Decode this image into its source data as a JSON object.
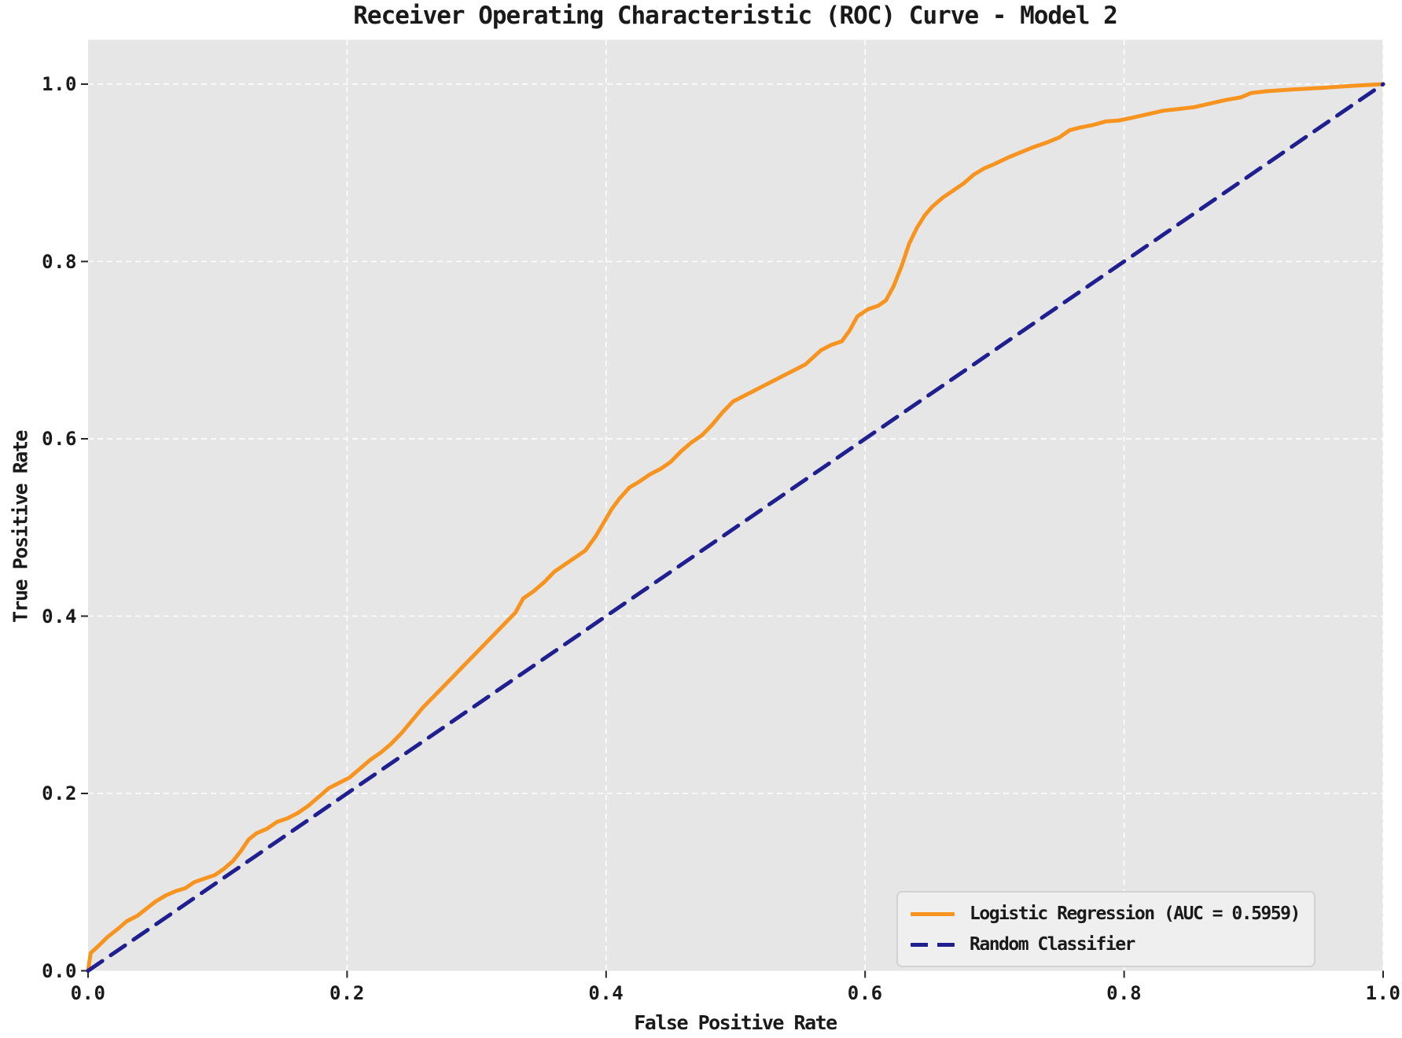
{
  "chart": {
    "title": "Receiver Operating Characteristic (ROC) Curve - Model 2",
    "xlabel": "False Positive Rate",
    "ylabel": "True Positive Rate"
  },
  "legend": {
    "position": "lower right",
    "items": [
      {
        "label": "Logistic Regression (AUC = 0.5959)",
        "style": "solid",
        "color": "#f79420"
      },
      {
        "label": "Random Classifier",
        "style": "dashed",
        "color": "#1f1f8f"
      }
    ]
  },
  "colors": {
    "figure_background": "#ffffff",
    "plot_background": "#e6e6e6",
    "gridline": "#ffffff",
    "roc_curve": "#f79420",
    "random_classifier": "#1f1f8f",
    "text": "#1a1a1a",
    "tick_mark": "#262626"
  },
  "chart_data": {
    "type": "line",
    "title": "Receiver Operating Characteristic (ROC) Curve - Model 2",
    "xlabel": "False Positive Rate",
    "ylabel": "True Positive Rate",
    "xlim": [
      0.0,
      1.0
    ],
    "ylim": [
      0.0,
      1.05
    ],
    "x_ticks": [
      "0.0",
      "0.2",
      "0.4",
      "0.6",
      "0.8",
      "1.0"
    ],
    "y_ticks": [
      "0.0",
      "0.2",
      "0.4",
      "0.6",
      "0.8",
      "1.0"
    ],
    "grid": {
      "visible": true,
      "line_style": "dashed",
      "color": "#ffffff"
    },
    "legend_position": "lower right",
    "auc": 0.5959,
    "series": [
      {
        "name": "Logistic Regression (AUC = 0.5959)",
        "color": "#f79420",
        "line_style": "solid",
        "line_width": 5,
        "points": [
          [
            0.0,
            0.0
          ],
          [
            0.002,
            0.02
          ],
          [
            0.008,
            0.028
          ],
          [
            0.015,
            0.038
          ],
          [
            0.022,
            0.046
          ],
          [
            0.03,
            0.056
          ],
          [
            0.038,
            0.062
          ],
          [
            0.045,
            0.07
          ],
          [
            0.052,
            0.078
          ],
          [
            0.06,
            0.085
          ],
          [
            0.068,
            0.09
          ],
          [
            0.075,
            0.093
          ],
          [
            0.082,
            0.1
          ],
          [
            0.09,
            0.104
          ],
          [
            0.098,
            0.108
          ],
          [
            0.105,
            0.115
          ],
          [
            0.112,
            0.124
          ],
          [
            0.118,
            0.135
          ],
          [
            0.124,
            0.148
          ],
          [
            0.13,
            0.155
          ],
          [
            0.138,
            0.16
          ],
          [
            0.146,
            0.168
          ],
          [
            0.154,
            0.172
          ],
          [
            0.162,
            0.178
          ],
          [
            0.17,
            0.186
          ],
          [
            0.178,
            0.196
          ],
          [
            0.186,
            0.206
          ],
          [
            0.194,
            0.212
          ],
          [
            0.202,
            0.218
          ],
          [
            0.21,
            0.228
          ],
          [
            0.218,
            0.238
          ],
          [
            0.226,
            0.246
          ],
          [
            0.234,
            0.256
          ],
          [
            0.242,
            0.268
          ],
          [
            0.25,
            0.282
          ],
          [
            0.258,
            0.296
          ],
          [
            0.266,
            0.308
          ],
          [
            0.274,
            0.32
          ],
          [
            0.282,
            0.332
          ],
          [
            0.29,
            0.344
          ],
          [
            0.298,
            0.356
          ],
          [
            0.306,
            0.368
          ],
          [
            0.314,
            0.38
          ],
          [
            0.322,
            0.392
          ],
          [
            0.33,
            0.404
          ],
          [
            0.336,
            0.42
          ],
          [
            0.344,
            0.428
          ],
          [
            0.352,
            0.438
          ],
          [
            0.36,
            0.45
          ],
          [
            0.368,
            0.458
          ],
          [
            0.376,
            0.466
          ],
          [
            0.384,
            0.474
          ],
          [
            0.392,
            0.49
          ],
          [
            0.398,
            0.505
          ],
          [
            0.404,
            0.52
          ],
          [
            0.41,
            0.532
          ],
          [
            0.418,
            0.545
          ],
          [
            0.426,
            0.552
          ],
          [
            0.434,
            0.56
          ],
          [
            0.442,
            0.566
          ],
          [
            0.45,
            0.574
          ],
          [
            0.458,
            0.586
          ],
          [
            0.466,
            0.596
          ],
          [
            0.474,
            0.604
          ],
          [
            0.482,
            0.616
          ],
          [
            0.49,
            0.63
          ],
          [
            0.498,
            0.642
          ],
          [
            0.506,
            0.648
          ],
          [
            0.514,
            0.654
          ],
          [
            0.522,
            0.66
          ],
          [
            0.53,
            0.666
          ],
          [
            0.538,
            0.672
          ],
          [
            0.546,
            0.678
          ],
          [
            0.554,
            0.684
          ],
          [
            0.56,
            0.692
          ],
          [
            0.566,
            0.7
          ],
          [
            0.574,
            0.706
          ],
          [
            0.582,
            0.71
          ],
          [
            0.588,
            0.722
          ],
          [
            0.594,
            0.738
          ],
          [
            0.602,
            0.746
          ],
          [
            0.61,
            0.75
          ],
          [
            0.616,
            0.756
          ],
          [
            0.622,
            0.772
          ],
          [
            0.628,
            0.794
          ],
          [
            0.634,
            0.82
          ],
          [
            0.64,
            0.838
          ],
          [
            0.646,
            0.852
          ],
          [
            0.652,
            0.862
          ],
          [
            0.66,
            0.872
          ],
          [
            0.668,
            0.88
          ],
          [
            0.676,
            0.888
          ],
          [
            0.684,
            0.898
          ],
          [
            0.692,
            0.905
          ],
          [
            0.7,
            0.91
          ],
          [
            0.71,
            0.917
          ],
          [
            0.72,
            0.923
          ],
          [
            0.73,
            0.929
          ],
          [
            0.74,
            0.934
          ],
          [
            0.75,
            0.94
          ],
          [
            0.758,
            0.948
          ],
          [
            0.766,
            0.951
          ],
          [
            0.776,
            0.954
          ],
          [
            0.786,
            0.958
          ],
          [
            0.796,
            0.959
          ],
          [
            0.806,
            0.962
          ],
          [
            0.818,
            0.966
          ],
          [
            0.83,
            0.97
          ],
          [
            0.842,
            0.972
          ],
          [
            0.854,
            0.974
          ],
          [
            0.866,
            0.978
          ],
          [
            0.878,
            0.982
          ],
          [
            0.89,
            0.985
          ],
          [
            0.898,
            0.99
          ],
          [
            0.91,
            0.992
          ],
          [
            0.93,
            0.994
          ],
          [
            0.955,
            0.996
          ],
          [
            0.975,
            0.998
          ],
          [
            1.0,
            1.0
          ]
        ]
      },
      {
        "name": "Random Classifier",
        "color": "#1f1f8f",
        "line_style": "dashed",
        "line_width": 5,
        "points": [
          [
            0.0,
            0.0
          ],
          [
            1.0,
            1.0
          ]
        ]
      }
    ]
  }
}
